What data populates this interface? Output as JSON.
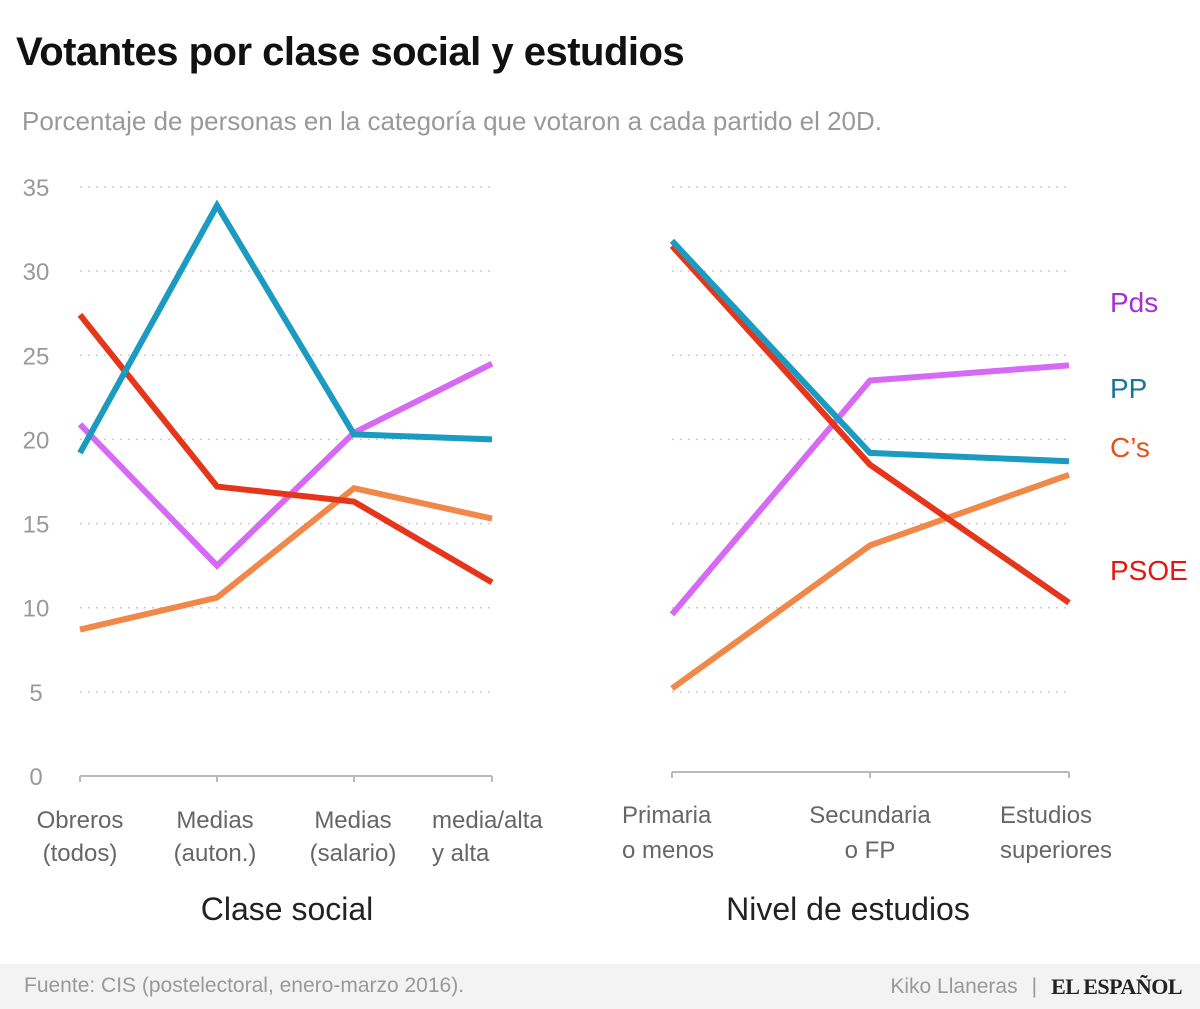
{
  "title": "Votantes por clase social y estudios",
  "subtitle": "Porcentaje de personas en la categoría que votaron a cada partido el 20D.",
  "footer": {
    "source": "Fuente: CIS (postelectoral, enero-marzo 2016).",
    "author": "Kiko Llaneras",
    "separator": "|",
    "logo": "EL ESPAÑOL"
  },
  "legend": [
    {
      "label": "Pds",
      "color": "#a52fd6"
    },
    {
      "label": "PP",
      "color": "#17759a"
    },
    {
      "label": "C’s",
      "color": "#e4521a"
    },
    {
      "label": "PSOE",
      "color": "#e8150f"
    }
  ],
  "chart_data": [
    {
      "type": "line",
      "xlabel": "Clase social",
      "categories": [
        [
          "Obreros",
          "(todos)"
        ],
        [
          "Medias",
          "(auton.)"
        ],
        [
          "Medias",
          "(salario)"
        ],
        [
          "media/alta",
          "y alta"
        ]
      ],
      "ylim": [
        0,
        35
      ],
      "yticks": [
        0,
        5,
        10,
        15,
        20,
        25,
        30,
        35
      ],
      "grid": true,
      "series": [
        {
          "name": "Pds",
          "color": "#d66af5",
          "values": [
            20.9,
            12.5,
            20.4,
            24.5
          ]
        },
        {
          "name": "C’s",
          "color": "#f0884a",
          "values": [
            8.7,
            10.6,
            17.1,
            15.3
          ]
        },
        {
          "name": "PSOE",
          "color": "#e5361c",
          "values": [
            27.4,
            17.2,
            16.3,
            11.5
          ]
        },
        {
          "name": "PP",
          "color": "#1b9bc0",
          "values": [
            19.2,
            33.9,
            20.3,
            20.0
          ]
        }
      ]
    },
    {
      "type": "line",
      "xlabel": "Nivel de estudios",
      "categories": [
        [
          "Primaria",
          "o menos"
        ],
        [
          "Secundaria",
          "o FP"
        ],
        [
          "Estudios",
          "superiores"
        ]
      ],
      "ylim": [
        0,
        35
      ],
      "grid": true,
      "legend": "right",
      "series": [
        {
          "name": "Pds",
          "color": "#d66af5",
          "values": [
            9.6,
            23.5,
            24.4
          ]
        },
        {
          "name": "C’s",
          "color": "#f0884a",
          "values": [
            5.2,
            13.7,
            17.9
          ]
        },
        {
          "name": "PSOE",
          "color": "#e5361c",
          "values": [
            31.5,
            18.5,
            10.3
          ]
        },
        {
          "name": "PP",
          "color": "#1b9bc0",
          "values": [
            31.8,
            19.2,
            18.7
          ]
        }
      ]
    }
  ]
}
